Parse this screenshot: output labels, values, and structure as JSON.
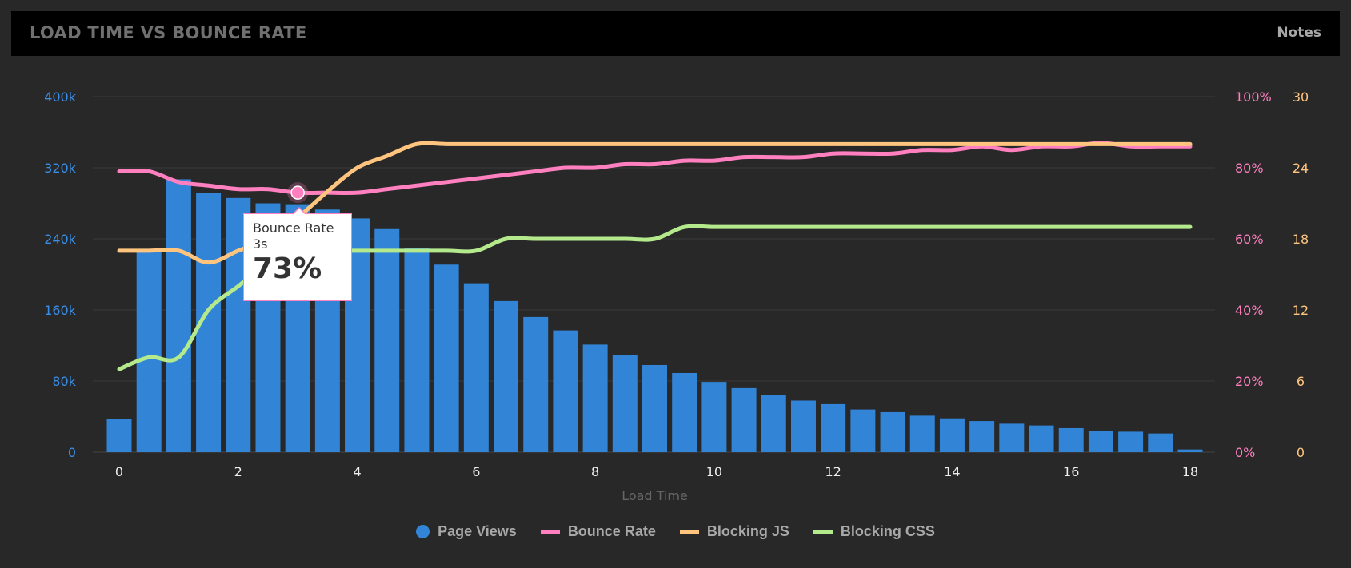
{
  "header": {
    "title": "LOAD TIME VS BOUNCE RATE",
    "notes_label": "Notes"
  },
  "tooltip": {
    "series": "Bounce Rate",
    "x": "3s",
    "value": "73%"
  },
  "chart_data": {
    "type": "bar+line",
    "title": "LOAD TIME VS BOUNCE RATE",
    "xlabel": "Load Time",
    "x": [
      0,
      0.5,
      1,
      1.5,
      2,
      2.5,
      3,
      3.5,
      4,
      4.5,
      5,
      5.5,
      6,
      6.5,
      7,
      7.5,
      8,
      8.5,
      9,
      9.5,
      10,
      10.5,
      11,
      11.5,
      12,
      12.5,
      13,
      13.5,
      14,
      14.5,
      15,
      15.5,
      16,
      16.5,
      17,
      17.5,
      18
    ],
    "xlim": [
      0,
      18
    ],
    "x_ticks": [
      "0",
      "2",
      "4",
      "6",
      "8",
      "10",
      "12",
      "14",
      "16",
      "18"
    ],
    "y_left": {
      "ylim": [
        0,
        400000
      ],
      "ticks": [
        "0",
        "80k",
        "160k",
        "240k",
        "320k",
        "400k"
      ],
      "color": "#3a8ee6"
    },
    "y_right_pct": {
      "ylim": [
        0,
        100
      ],
      "ticks": [
        "0%",
        "20%",
        "40%",
        "60%",
        "80%",
        "100%"
      ],
      "color": "#ff7fbf"
    },
    "y_right_count": {
      "ylim": [
        0,
        30
      ],
      "ticks": [
        "0",
        "6",
        "12",
        "18",
        "24",
        "30"
      ],
      "color": "#ffc57f"
    },
    "grid": true,
    "legend_position": "bottom",
    "series": [
      {
        "name": "Page Views",
        "type": "bar",
        "axis": "left",
        "color": "#3284d6",
        "values": [
          37000,
          226000,
          307000,
          292000,
          286000,
          280000,
          279000,
          273000,
          263000,
          251000,
          230000,
          211000,
          190000,
          170000,
          152000,
          137000,
          121000,
          109000,
          98000,
          89000,
          79000,
          72000,
          64000,
          58000,
          54000,
          48000,
          45000,
          41000,
          38000,
          35000,
          32000,
          30000,
          27000,
          24000,
          23000,
          21000,
          3000
        ]
      },
      {
        "name": "Bounce Rate",
        "type": "line",
        "axis": "right_pct",
        "color": "#ff7fbf",
        "values": [
          79,
          79,
          76,
          75,
          74,
          74,
          73,
          73,
          73,
          74,
          75,
          76,
          77,
          78,
          79,
          80,
          80,
          81,
          81,
          82,
          82,
          83,
          83,
          83,
          84,
          84,
          84,
          85,
          85,
          86,
          85,
          86,
          86,
          87,
          86,
          86,
          86
        ]
      },
      {
        "name": "Blocking JS",
        "type": "line",
        "axis": "right_count",
        "color": "#ffc57f",
        "values": [
          17,
          17,
          17,
          16,
          17,
          18,
          19.8,
          22,
          24,
          25,
          26,
          26,
          26,
          26,
          26,
          26,
          26,
          26,
          26,
          26,
          26,
          26,
          26,
          26,
          26,
          26,
          26,
          26,
          26,
          26,
          26,
          26,
          26,
          26,
          26,
          26,
          26
        ]
      },
      {
        "name": "Blocking CSS",
        "type": "line",
        "axis": "right_count",
        "color": "#b5ea8c",
        "values": [
          7,
          8,
          8,
          12,
          14,
          16,
          17,
          17,
          17,
          17,
          17,
          17,
          17,
          18,
          18,
          18,
          18,
          18,
          18,
          19,
          19,
          19,
          19,
          19,
          19,
          19,
          19,
          19,
          19,
          19,
          19,
          19,
          19,
          19,
          19,
          19,
          19
        ]
      }
    ],
    "highlight": {
      "series": "Bounce Rate",
      "x": 3,
      "value": 73
    }
  }
}
